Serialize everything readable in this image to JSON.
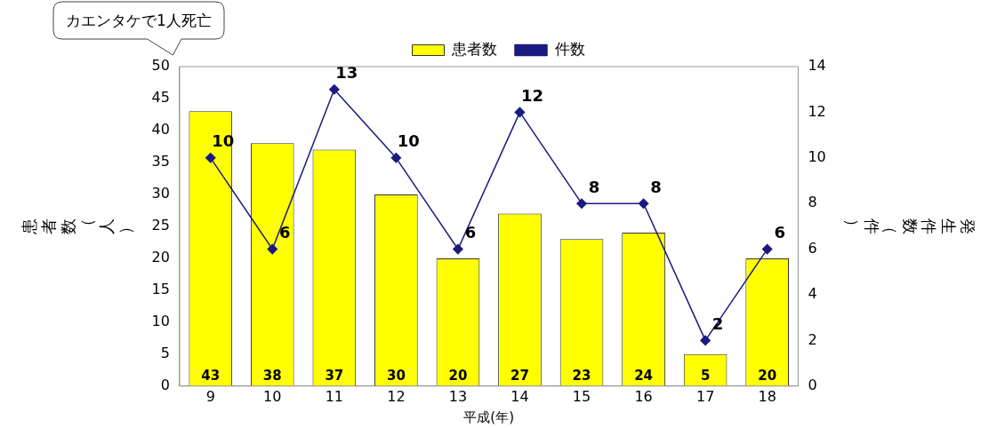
{
  "chart_data": {
    "type": "bar",
    "categories": [
      "9",
      "10",
      "11",
      "12",
      "13",
      "14",
      "15",
      "16",
      "17",
      "18"
    ],
    "series": [
      {
        "name": "患者数",
        "color": "#ffff00",
        "values": [
          43,
          38,
          37,
          30,
          20,
          27,
          23,
          24,
          5,
          20
        ]
      },
      {
        "name": "件数",
        "type": "line",
        "axis": "y2",
        "color": "#1a1a80",
        "values": [
          10,
          6,
          13,
          10,
          6,
          12,
          8,
          8,
          2,
          6
        ]
      }
    ],
    "xlabel": "平成(年)",
    "ylabel": "患者数（人）",
    "y2label": "発生件数（件）",
    "ylim": [
      0,
      50
    ],
    "yticks": [
      0,
      5,
      10,
      15,
      20,
      25,
      30,
      35,
      40,
      45,
      50
    ],
    "y2lim": [
      0,
      14
    ],
    "y2ticks": [
      0,
      2,
      4,
      6,
      8,
      10,
      12,
      14
    ],
    "annotations": [
      "カエンタケで1人死亡"
    ],
    "data_labels": true,
    "legend": "top",
    "marker": "diamond",
    "line_style": "solid",
    "grid": false
  }
}
